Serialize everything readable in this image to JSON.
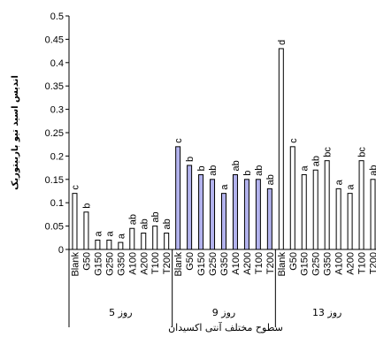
{
  "chart_data": {
    "type": "bar",
    "ylabel": "اندیس اسید تیو باربیتوریک",
    "xlabel": "سطوح مختلف آنتی اکسیدان",
    "ylim": [
      0,
      0.5
    ],
    "yticks": [
      "0",
      "0.05",
      "0.1",
      "0.15",
      "0.2",
      "0.25",
      "0.3",
      "0.35",
      "0.4",
      "0.45",
      "0.5"
    ],
    "grid": false,
    "groups": [
      {
        "label": "روز 5",
        "bar_color": "#ffffff",
        "categories": [
          "Blank",
          "G50",
          "G150",
          "G250",
          "G350",
          "A100",
          "A200",
          "T100",
          "T200"
        ],
        "values": [
          0.12,
          0.08,
          0.02,
          0.02,
          0.015,
          0.045,
          0.035,
          0.05,
          0.035
        ],
        "letters": [
          "c",
          "b",
          "a",
          "a",
          "a",
          "ab",
          "ab",
          "ab",
          "ab"
        ]
      },
      {
        "label": "روز 9",
        "bar_color": "#b3b3ee",
        "categories": [
          "Blank",
          "G50",
          "G150",
          "G250",
          "G350",
          "A100",
          "A200",
          "T100",
          "T200"
        ],
        "values": [
          0.22,
          0.18,
          0.16,
          0.15,
          0.12,
          0.16,
          0.15,
          0.15,
          0.13
        ],
        "letters": [
          "c",
          "b",
          "b",
          "ab",
          "a",
          "ab",
          "b",
          "ab",
          "ab"
        ]
      },
      {
        "label": "روز 13",
        "bar_color": "#ffffff",
        "categories": [
          "Blank",
          "G50",
          "G150",
          "G250",
          "G350",
          "A100",
          "A200",
          "T100",
          "T200"
        ],
        "values": [
          0.43,
          0.22,
          0.16,
          0.17,
          0.19,
          0.13,
          0.12,
          0.19,
          0.15
        ],
        "letters": [
          "d",
          "c",
          "a",
          "ab",
          "bc",
          "a",
          "a",
          "bc",
          "ab"
        ]
      }
    ]
  }
}
